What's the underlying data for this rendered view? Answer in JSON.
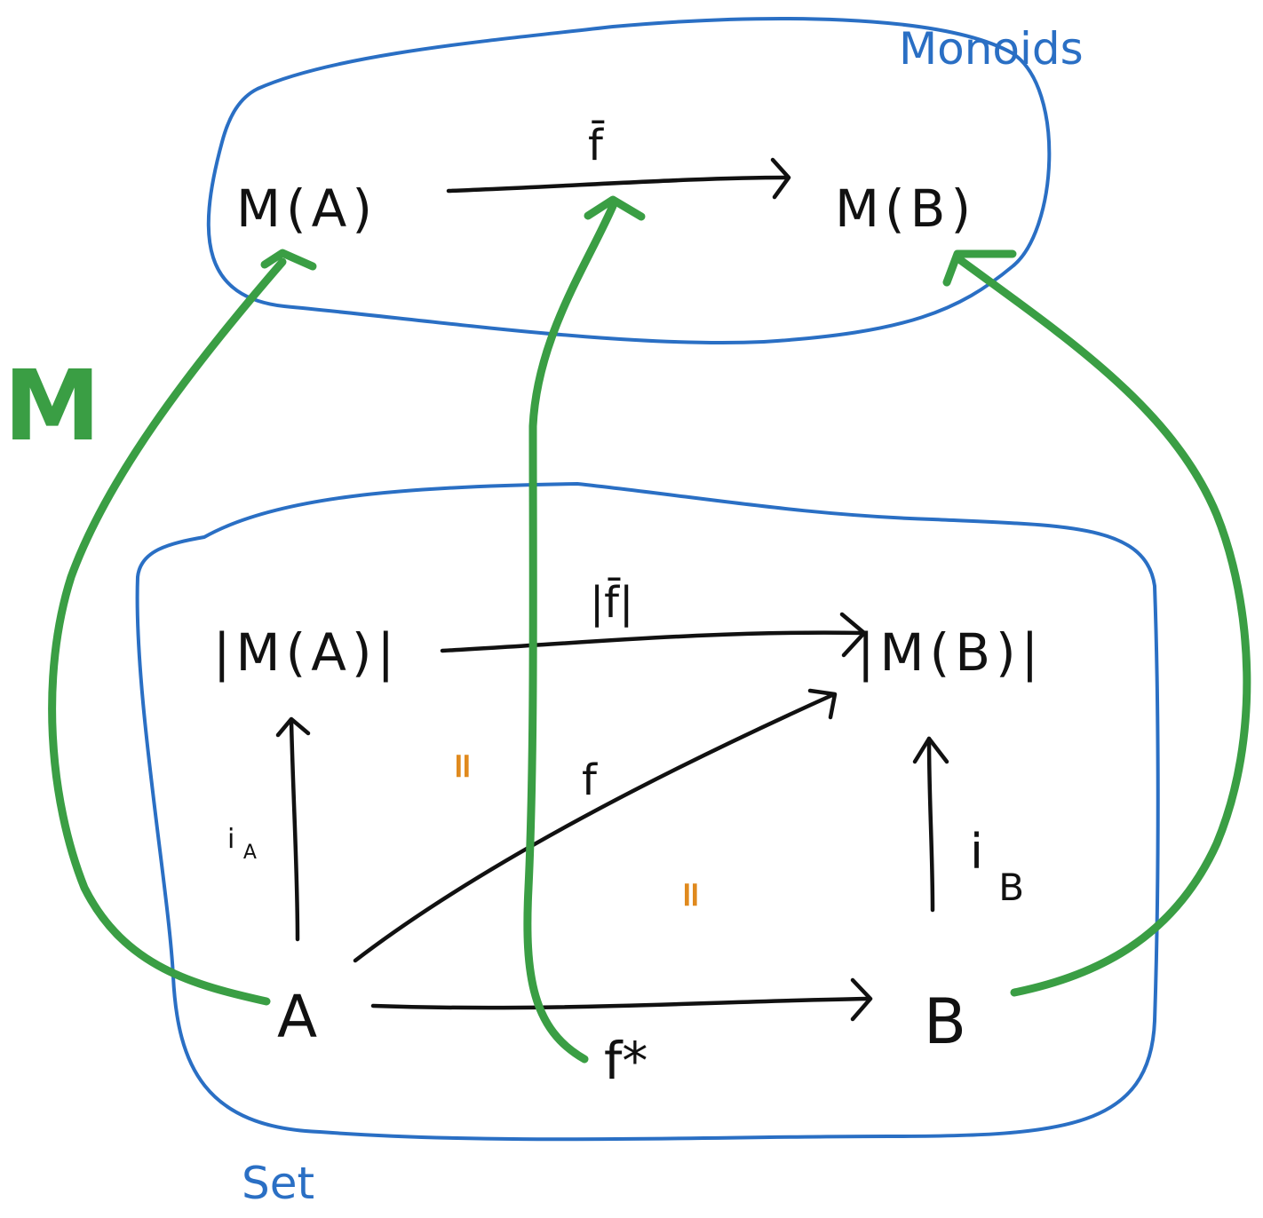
{
  "colors": {
    "region": "#2a6fc4",
    "ink": "#111111",
    "functor": "#3a9e44",
    "equality": "#e08a1e"
  },
  "regions": {
    "monoids": "Monoids",
    "set": "Set"
  },
  "functor_label": "M",
  "objects": {
    "m_a": "M(A)",
    "m_b": "M(B)",
    "abs_m_a": "|M(A)|",
    "abs_m_b": "|M(B)|",
    "a": "A",
    "b": "B"
  },
  "morphisms": {
    "f_bar": "f̄",
    "abs_f_bar": "|f̄|",
    "f": "f",
    "f_star": "f*",
    "i_a_base": "i",
    "i_a_sub": "A",
    "i_b_base": "i",
    "i_b_sub": "B"
  },
  "equalities": {
    "left": "=",
    "right": "="
  }
}
